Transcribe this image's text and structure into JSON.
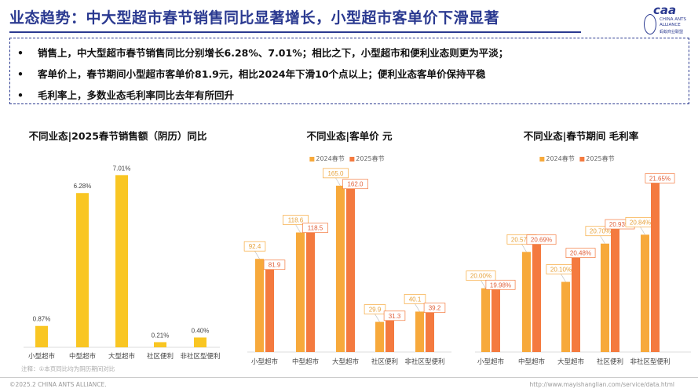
{
  "header": {
    "title": "业态趋势：中大型超市春节销售同比显著增长，小型超市客单价下滑显著",
    "logo": {
      "mark": "caa",
      "line1": "CHINA ANTS",
      "line2": "ALLIANCE",
      "line3": "蚂蚁商业联盟"
    }
  },
  "summary": {
    "bullet": "•",
    "items": [
      "销售上，中大型超市春节销售同比分别增长6.28%、7.01%；相比之下，小型超市和便利业态则更为平淡；",
      "客单价上，春节期间小型超市客单价81.9元，相比2024年下滑10个点以上；便利业态客单价保持平稳",
      "毛利率上，多数业态毛利率同比去年有所回升"
    ]
  },
  "colors": {
    "title": "#2a3990",
    "sales": "#f9c623",
    "y2024": "#f7a93b",
    "y2025": "#f47a3f"
  },
  "chart_data": [
    {
      "type": "bar",
      "title": "不同业态|2025春节销售额（阴历）同比",
      "categories": [
        "小型超市",
        "中型超市",
        "大型超市",
        "社区便利",
        "非社区型便利"
      ],
      "values": [
        0.87,
        6.28,
        7.01,
        0.21,
        0.4
      ],
      "data_labels": [
        "0.87%",
        "6.28%",
        "7.01%",
        "0.21%",
        "0.40%"
      ],
      "unit": "%",
      "ylim": [
        0,
        7.5
      ],
      "grid": false,
      "legend": "none"
    },
    {
      "type": "bar",
      "title": "不同业态|客单价 元",
      "categories": [
        "小型超市",
        "中型超市",
        "大型超市",
        "社区便利",
        "非社区型便利"
      ],
      "series": [
        {
          "name": "2024春节",
          "values": [
            92.4,
            118.6,
            165.0,
            29.9,
            40.1
          ],
          "labels": [
            "92.4",
            "118.6",
            "165.0",
            "29.9",
            "40.1"
          ]
        },
        {
          "name": "2025春节",
          "values": [
            81.9,
            118.5,
            162.0,
            31.3,
            39.2
          ],
          "labels": [
            "81.9",
            "118.5",
            "162.0",
            "31.3",
            "39.2"
          ]
        }
      ],
      "ylim": [
        0,
        175
      ],
      "grid": false,
      "legend": "top"
    },
    {
      "type": "bar",
      "title": "不同业态|春节期间 毛利率",
      "categories": [
        "小型超市",
        "中型超市",
        "大型超市",
        "社区便利",
        "非社区型便利"
      ],
      "series": [
        {
          "name": "2024春节",
          "values": [
            20.0,
            20.57,
            20.1,
            20.7,
            20.84
          ],
          "labels": [
            "20.00%",
            "20.57%",
            "20.10%",
            "20.70%",
            "20.84%"
          ]
        },
        {
          "name": "2025春节",
          "values": [
            19.98,
            20.69,
            20.48,
            20.93,
            21.65
          ],
          "labels": [
            "19.98%",
            "20.69%",
            "20.48%",
            "20.93%",
            "21.65%"
          ]
        }
      ],
      "unit": "%",
      "ylim": [
        19.0,
        22.0
      ],
      "grid": false,
      "legend": "top"
    }
  ],
  "footer": {
    "note": "注释：①本页同比均为阴历期间对比",
    "copyright": "©2025.2 CHINA ANTS ALLIANCE.",
    "url": "http://www.mayishanglian.com/service/data.html"
  }
}
